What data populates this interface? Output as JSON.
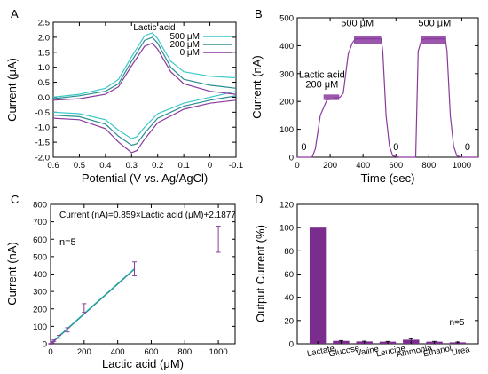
{
  "chart_data": [
    {
      "panel": "A",
      "type": "line",
      "xlabel": "Potential (V vs. Ag/AgCl)",
      "ylabel": "Current (μA)",
      "xlim": [
        0.6,
        -0.1
      ],
      "ylim": [
        -2.0,
        2.5
      ],
      "xticks": [
        "0.6",
        "0.5",
        "0.4",
        "0.3",
        "0.2",
        "0.1",
        "0",
        "-0.1"
      ],
      "yticks": [
        "-2.0",
        "-1.5",
        "-1.0",
        "-0.5",
        "0.0",
        "0.5",
        "1.0",
        "1.5",
        "2.0",
        "2.5"
      ],
      "legend_title": "Lactic acid",
      "legend_position": "top-right",
      "series": [
        {
          "name": "500 μM",
          "color": "#3cc8c8",
          "anodic": {
            "x": [
              -0.1,
              0.0,
              0.1,
              0.15,
              0.2,
              0.22,
              0.25,
              0.3,
              0.35,
              0.4,
              0.5,
              0.6
            ],
            "y": [
              0.65,
              0.7,
              0.85,
              1.2,
              1.95,
              2.15,
              2.05,
              1.35,
              0.6,
              0.3,
              0.1,
              0.0
            ]
          },
          "cathodic": {
            "x": [
              0.6,
              0.5,
              0.4,
              0.35,
              0.3,
              0.28,
              0.25,
              0.2,
              0.1,
              0.0,
              -0.1
            ],
            "y": [
              -0.5,
              -0.55,
              -0.75,
              -1.1,
              -1.38,
              -1.32,
              -1.0,
              -0.55,
              -0.2,
              0.0,
              0.2
            ]
          }
        },
        {
          "name": "200 μM",
          "color": "#2a8e8e",
          "anodic": {
            "x": [
              -0.1,
              0.0,
              0.1,
              0.15,
              0.2,
              0.22,
              0.25,
              0.3,
              0.35,
              0.4,
              0.5,
              0.6
            ],
            "y": [
              0.3,
              0.4,
              0.6,
              1.0,
              1.8,
              2.0,
              1.9,
              1.2,
              0.45,
              0.2,
              0.05,
              -0.05
            ]
          },
          "cathodic": {
            "x": [
              0.6,
              0.5,
              0.4,
              0.35,
              0.3,
              0.28,
              0.25,
              0.2,
              0.1,
              0.0,
              -0.1
            ],
            "y": [
              -0.6,
              -0.65,
              -0.9,
              -1.3,
              -1.6,
              -1.55,
              -1.2,
              -0.7,
              -0.3,
              -0.1,
              0.05
            ]
          }
        },
        {
          "name": "0 μM",
          "color": "#8a3a9e",
          "anodic": {
            "x": [
              -0.1,
              0.0,
              0.1,
              0.15,
              0.2,
              0.22,
              0.25,
              0.3,
              0.35,
              0.4,
              0.5,
              0.6
            ],
            "y": [
              0.1,
              0.2,
              0.45,
              0.85,
              1.6,
              1.8,
              1.7,
              1.05,
              0.35,
              0.1,
              -0.05,
              -0.1
            ]
          },
          "cathodic": {
            "x": [
              0.6,
              0.5,
              0.4,
              0.35,
              0.3,
              0.28,
              0.25,
              0.2,
              0.1,
              0.0,
              -0.1
            ],
            "y": [
              -0.7,
              -0.75,
              -1.05,
              -1.5,
              -1.85,
              -1.78,
              -1.4,
              -0.85,
              -0.4,
              -0.2,
              -0.1
            ]
          }
        }
      ]
    },
    {
      "panel": "B",
      "type": "line",
      "xlabel": "Time (sec)",
      "ylabel": "Current (nA)",
      "xlim": [
        0,
        1100
      ],
      "ylim": [
        0,
        500
      ],
      "xticks": [
        "0",
        "200",
        "400",
        "600",
        "800",
        "1000"
      ],
      "yticks": [
        "0",
        "100",
        "200",
        "300",
        "400",
        "500"
      ],
      "series": [
        {
          "color": "#8a3a9e",
          "x": [
            0,
            90,
            110,
            140,
            180,
            260,
            280,
            310,
            335,
            355,
            380,
            510,
            520,
            540,
            560,
            580,
            620,
            720,
            735,
            755,
            780,
            900,
            910,
            930,
            950,
            970,
            1000,
            1100
          ],
          "y": [
            0,
            0,
            30,
            150,
            205,
            215,
            230,
            370,
            410,
            425,
            425,
            425,
            380,
            150,
            40,
            5,
            0,
            0,
            380,
            420,
            425,
            425,
            380,
            150,
            40,
            5,
            0,
            0
          ]
        }
      ],
      "annotations": [
        {
          "text": "0",
          "x": 40,
          "y": 25
        },
        {
          "text": "Lactic acid",
          "x": 150,
          "y": 285
        },
        {
          "text": "200 μM",
          "x": 150,
          "y": 250
        },
        {
          "text": "500 μM",
          "x": 365,
          "y": 470
        },
        {
          "text": "0",
          "x": 600,
          "y": 25
        },
        {
          "text": "500 μM",
          "x": 835,
          "y": 470
        },
        {
          "text": "0",
          "x": 1035,
          "y": 25
        }
      ]
    },
    {
      "panel": "C",
      "type": "scatter",
      "xlabel": "Lactic acid (μM)",
      "ylabel": "Current (nA)",
      "xlim": [
        0,
        1100
      ],
      "ylim": [
        0,
        800
      ],
      "xticks": [
        "0",
        "200",
        "400",
        "600",
        "800",
        "1000"
      ],
      "yticks": [
        "0",
        "100",
        "200",
        "300",
        "400",
        "500",
        "600",
        "700",
        "800"
      ],
      "equation": "Current (nA)=0.859×Lactic acid (μM)+2.1877",
      "n_label": "n=5",
      "fit": {
        "slope": 0.859,
        "intercept": 2.1877,
        "x_range": [
          0,
          500
        ],
        "colors": [
          "#3cc8c8",
          "#2a8e8e"
        ]
      },
      "series": [
        {
          "color": "#8a3a9e",
          "x": [
            0,
            10,
            20,
            50,
            100,
            200,
            500,
            1000
          ],
          "y": [
            0,
            9,
            18,
            40,
            80,
            205,
            430,
            600
          ],
          "yerr": [
            2,
            3,
            4,
            8,
            12,
            25,
            40,
            75
          ]
        }
      ]
    },
    {
      "panel": "D",
      "type": "bar",
      "ylabel": "Output Current (%)",
      "ylim": [
        0,
        120
      ],
      "yticks": [
        "0",
        "20",
        "40",
        "60",
        "80",
        "100",
        "120"
      ],
      "categories": [
        "Lactate",
        "Glucose",
        "Valine",
        "Leucine",
        "Ammonia",
        "Ethanol",
        "Urea"
      ],
      "values": [
        100,
        2.5,
        2,
        1.8,
        3.5,
        1.8,
        1.2
      ],
      "yerr": [
        0,
        0.3,
        0.3,
        0.3,
        0.8,
        0.3,
        0.3
      ],
      "color": "#7b2d8e",
      "n_label": "n=5"
    }
  ]
}
